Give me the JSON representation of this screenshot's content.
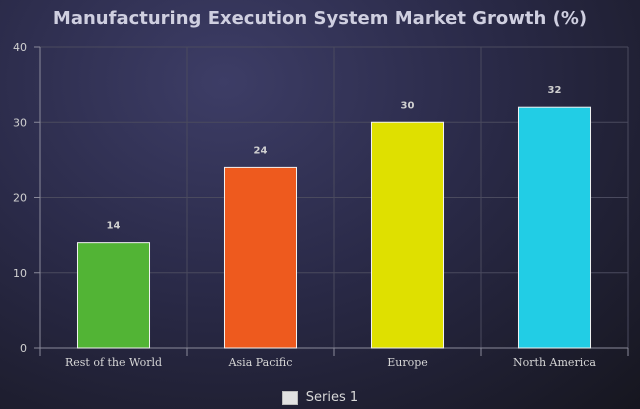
{
  "chart_data": {
    "type": "bar",
    "title": "Manufacturing Execution System Market Growth (%)",
    "categories": [
      "Rest of the World",
      "Asia Pacific",
      "Europe",
      "North America"
    ],
    "series": [
      {
        "name": "Series 1",
        "values": [
          14,
          24,
          30,
          32
        ]
      }
    ],
    "bar_colors": [
      "#52b435",
      "#ee5a1e",
      "#dfe000",
      "#22cde5"
    ],
    "ylim": [
      0,
      40
    ],
    "yticks": [
      0,
      10,
      20,
      30,
      40
    ],
    "grid": true,
    "data_labels": true,
    "legend_position": "bottom-center"
  },
  "legend": {
    "label": "Series 1"
  }
}
